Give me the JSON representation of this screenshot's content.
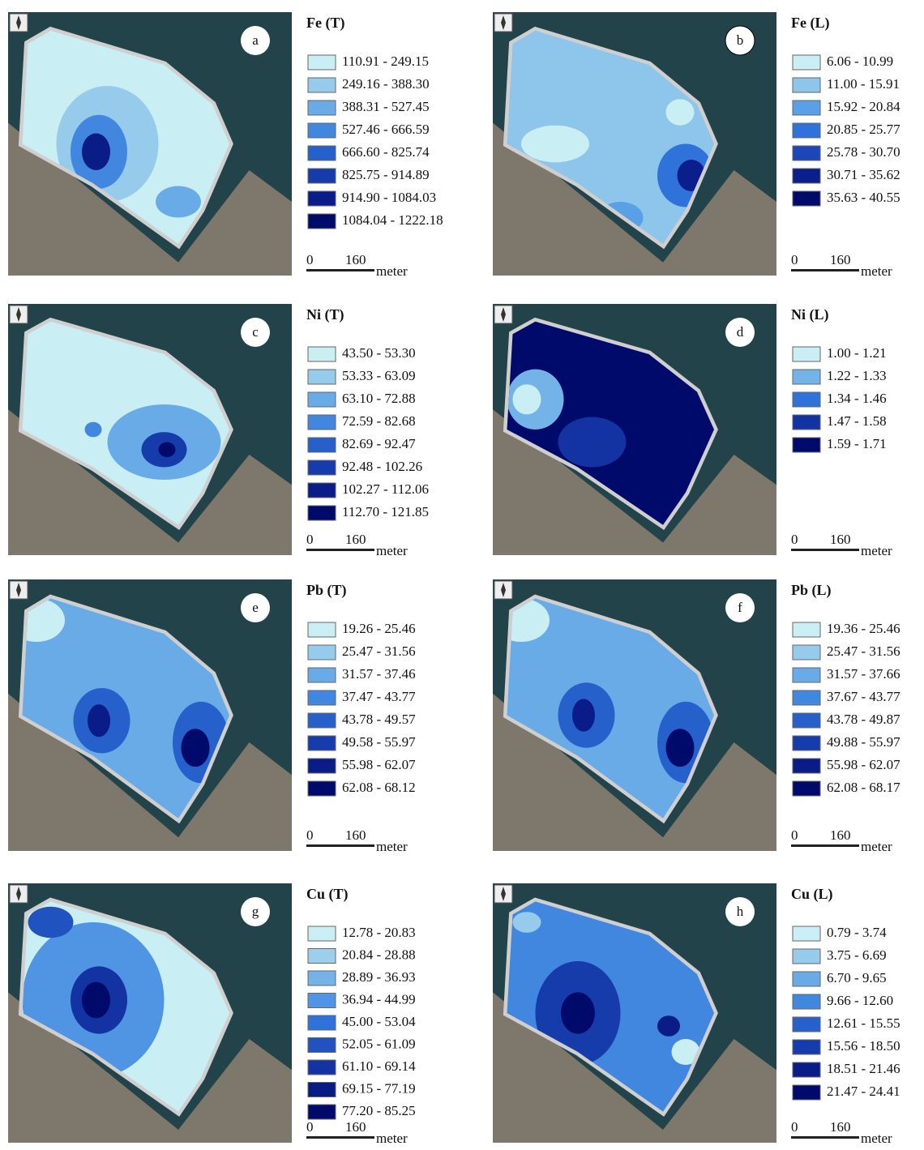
{
  "panels": [
    {
      "label": "a",
      "title": "Fe (T)",
      "legend": [
        "110.91 - 249.15",
        "249.16 - 388.30",
        "388.31 - 527.45",
        "527.46 - 666.59",
        "666.60 - 825.74",
        "825.75 - 914.89",
        "914.90 - 1084.03",
        "1084.04 - 1222.18"
      ],
      "scale": {
        "start": "0",
        "end": "160",
        "unit": "meter"
      }
    },
    {
      "label": "b",
      "title": "Fe (L)",
      "legend": [
        "6.06 - 10.99",
        "11.00 - 15.91",
        "15.92 - 20.84",
        "20.85 - 25.77",
        "25.78 - 30.70",
        "30.71 - 35.62",
        "35.63 - 40.55"
      ],
      "scale": {
        "start": "0",
        "end": "160",
        "unit": "meter"
      }
    },
    {
      "label": "c",
      "title": "Ni (T)",
      "legend": [
        "43.50 - 53.30",
        "53.33 - 63.09",
        "63.10 - 72.88",
        "72.59 - 82.68",
        "82.69 - 92.47",
        "92.48 - 102.26",
        "102.27 - 112.06",
        "112.70 - 121.85"
      ],
      "scale": {
        "start": "0",
        "end": "160",
        "unit": "meter"
      }
    },
    {
      "label": "d",
      "title": "Ni (L)",
      "legend": [
        "1.00 - 1.21",
        "1.22 - 1.33",
        "1.34 - 1.46",
        "1.47 - 1.58",
        "1.59 - 1.71"
      ],
      "scale": {
        "start": "0",
        "end": "160",
        "unit": "meter"
      }
    },
    {
      "label": "e",
      "title": "Pb (T)",
      "legend": [
        "19.26 - 25.46",
        "25.47 - 31.56",
        "31.57 - 37.46",
        "37.47 - 43.77",
        "43.78 - 49.57",
        "49.58 - 55.97",
        "55.98 - 62.07",
        "62.08 - 68.12"
      ],
      "scale": {
        "start": "0",
        "end": "160",
        "unit": "meter"
      }
    },
    {
      "label": "f",
      "title": "Pb (L)",
      "legend": [
        "19.36 - 25.46",
        "25.47 - 31.56",
        "31.57 - 37.66",
        "37.67 - 43.77",
        "43.78 - 49.87",
        "49.88 - 55.97",
        "55.98 - 62.07",
        "62.08 - 68.17"
      ],
      "scale": {
        "start": "0",
        "end": "160",
        "unit": "meter"
      }
    },
    {
      "label": "g",
      "title": "Cu (T)",
      "legend": [
        "12.78 - 20.83",
        "20.84 - 28.88",
        "28.89 - 36.93",
        "36.94 - 44.99",
        "45.00 - 53.04",
        "52.05 - 61.09",
        "61.10 - 69.14",
        "69.15 - 77.19",
        "77.20 - 85.25"
      ],
      "scale": {
        "start": "0",
        "end": "160",
        "unit": "meter"
      }
    },
    {
      "label": "h",
      "title": "Cu (L)",
      "legend": [
        "0.79 - 3.74",
        "3.75 - 6.69",
        "6.70 - 9.65",
        "9.66 - 12.60",
        "12.61 - 15.55",
        "15.56 - 18.50",
        "18.51 - 21.46",
        "21.47 - 24.41"
      ],
      "scale": {
        "start": "0",
        "end": "160",
        "unit": "meter"
      }
    }
  ]
}
